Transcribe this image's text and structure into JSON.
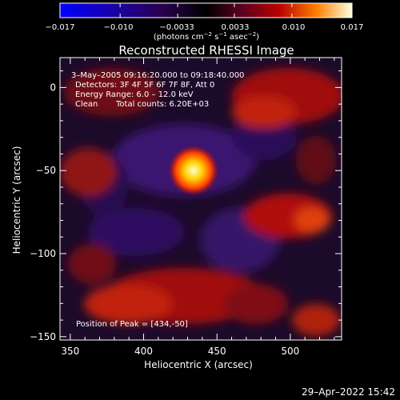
{
  "chart_data": {
    "type": "heatmap",
    "title": "Reconstructed RHESSI Image",
    "xlabel": "Heliocentric X (arcsec)",
    "ylabel": "Heliocentric Y (arcsec)",
    "xlim": [
      343,
      535
    ],
    "ylim": [
      -152,
      18
    ],
    "x_ticks": [
      350,
      400,
      450,
      500
    ],
    "y_ticks": [
      0,
      -50,
      -100,
      -150
    ],
    "colorbar": {
      "range": [
        -0.017,
        0.017
      ],
      "ticks": [
        "−0.017",
        "−0.010",
        "−0.0033",
        "0.0033",
        "0.010",
        "0.017"
      ],
      "label_main": "(photons cm",
      "label_exp1": "−2",
      "label_mid1": " s",
      "label_exp2": "−1",
      "label_mid2": " asec",
      "label_exp3": "−2",
      "label_end": ")"
    },
    "annotations": {
      "time": "3–May–2005 09:16:20.000 to 09:18:40.000",
      "detectors": "Detectors: 3F 4F 5F 6F 7F 8F, Att 0",
      "energy": "Energy Range: 6.0 – 12.0 keV",
      "clean_label": "Clean",
      "counts": "Total counts: 6.20E+03",
      "peak": "Position of Peak = [434,-50]"
    },
    "peak": {
      "x": 434,
      "y": -50,
      "value": 0.017
    },
    "date_stamp": "29–Apr–2022 15:42"
  }
}
